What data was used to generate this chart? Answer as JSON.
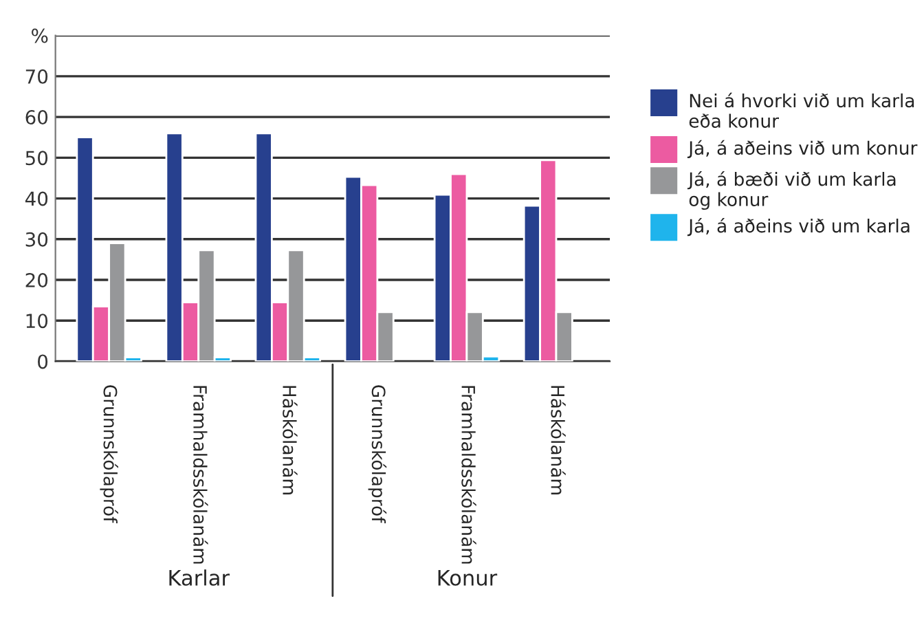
{
  "chart_data": {
    "type": "bar",
    "categories": [
      "Grunnskólapróf",
      "Framhaldsskólanám",
      "Háskólanám",
      "Grunnskólapróf",
      "Framhaldsskólanám",
      "Háskólanám"
    ],
    "series": [
      {
        "name": "Nei á hvorki við um karla eða konur",
        "color": "#27408e",
        "values": [
          55,
          56,
          56,
          45.3,
          40.9,
          38.2
        ]
      },
      {
        "name": "Já, á aðeins við um konur",
        "color": "#ec5ba1",
        "values": [
          13.5,
          14.5,
          14.5,
          43.3,
          46,
          49.4
        ]
      },
      {
        "name": "Já, á bæði við um karla og konur",
        "color": "#969799",
        "values": [
          29,
          27.3,
          27.3,
          12.1,
          12.1,
          12.1
        ]
      },
      {
        "name": "Já, á aðeins við um karla",
        "color": "#1fb4ec",
        "values": [
          1,
          1,
          1,
          null,
          1.2,
          null
        ]
      }
    ],
    "ylim": [
      0,
      80
    ],
    "yticks": [
      0,
      10,
      20,
      30,
      40,
      50,
      60,
      70,
      {
        "value": 80,
        "label": "%"
      }
    ],
    "grid": "y",
    "legend": "right",
    "annotations": [
      "Karlar",
      "Konur"
    ]
  }
}
